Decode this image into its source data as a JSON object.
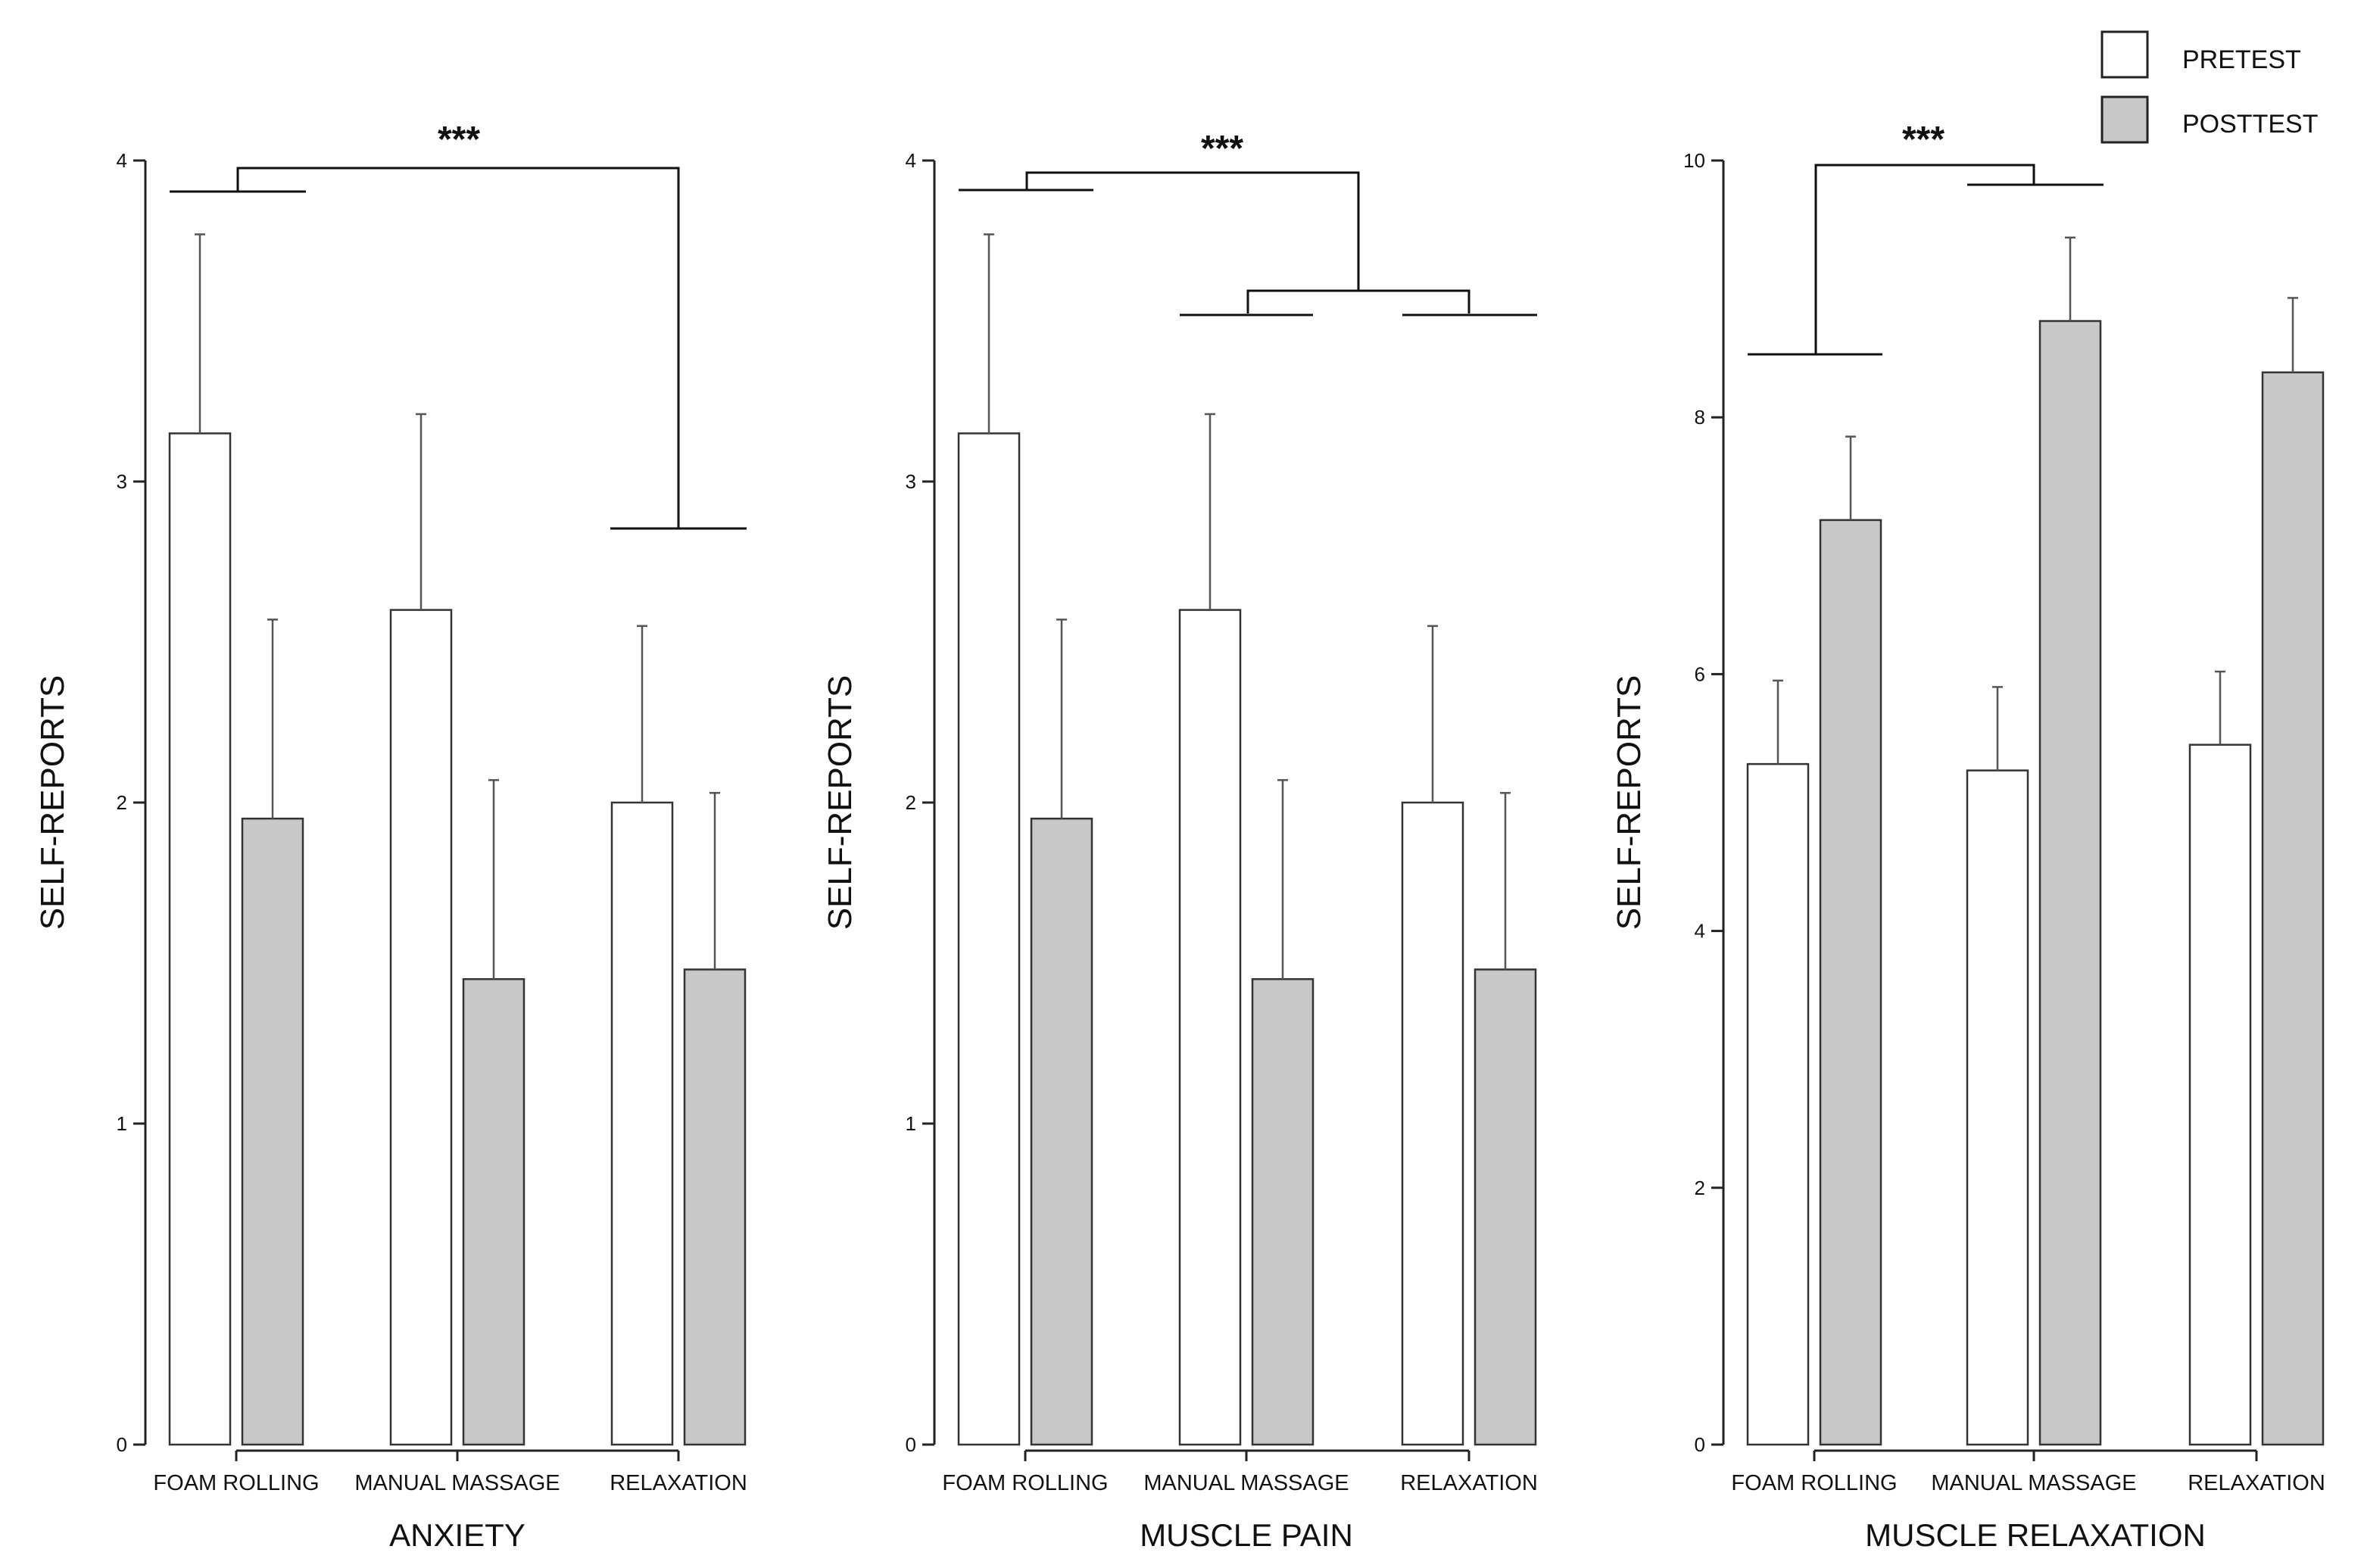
{
  "legend": {
    "items": [
      {
        "label": "PRETEST",
        "color": "#ffffff"
      },
      {
        "label": "POSTTEST",
        "color": "#c8c8c8"
      }
    ]
  },
  "colors": {
    "pretest": "#ffffff",
    "posttest": "#c8c8c8",
    "stroke": "#333333"
  },
  "chart_data": [
    {
      "type": "bar",
      "title": "ANXIETY",
      "xlabel": "ANXIETY",
      "ylabel": "SELF-REPORTS",
      "ylim": [
        0,
        4
      ],
      "yticks": [
        "0",
        "1",
        "2",
        "3",
        "4"
      ],
      "categories": [
        "FOAM ROLLING",
        "MANUAL MASSAGE",
        "RELAXATION"
      ],
      "series": [
        {
          "name": "PRETEST",
          "values": [
            3.15,
            2.6,
            2.0
          ],
          "errors": [
            0.62,
            0.61,
            0.55
          ]
        },
        {
          "name": "POSTTEST",
          "values": [
            1.95,
            1.45,
            1.48
          ],
          "errors": [
            0.62,
            0.62,
            0.55
          ]
        }
      ],
      "significance": {
        "label": "***",
        "between": [
          "FOAM ROLLING",
          "RELAXATION"
        ]
      }
    },
    {
      "type": "bar",
      "title": "MUSCLE PAIN",
      "xlabel": "MUSCLE PAIN",
      "ylabel": "SELF-REPORTS",
      "ylim": [
        0,
        4
      ],
      "yticks": [
        "0",
        "1",
        "2",
        "3",
        "4"
      ],
      "categories": [
        "FOAM ROLLING",
        "MANUAL MASSAGE",
        "RELAXATION"
      ],
      "series": [
        {
          "name": "PRETEST",
          "values": [
            3.15,
            2.6,
            2.0
          ],
          "errors": [
            0.62,
            0.61,
            0.55
          ]
        },
        {
          "name": "POSTTEST",
          "values": [
            1.95,
            1.45,
            1.48
          ],
          "errors": [
            0.62,
            0.62,
            0.55
          ]
        }
      ],
      "significance": {
        "label": "***",
        "between": [
          "FOAM ROLLING",
          "MANUAL MASSAGE + RELAXATION"
        ]
      }
    },
    {
      "type": "bar",
      "title": "MUSCLE RELAXATION",
      "xlabel": "MUSCLE RELAXATION",
      "ylabel": "SELF-REPORTS",
      "ylim": [
        0,
        10
      ],
      "yticks": [
        "0",
        "2",
        "4",
        "6",
        "8",
        "10"
      ],
      "categories": [
        "FOAM ROLLING",
        "MANUAL MASSAGE",
        "RELAXATION"
      ],
      "series": [
        {
          "name": "PRETEST",
          "values": [
            5.3,
            5.25,
            5.45
          ],
          "errors": [
            0.65,
            0.65,
            0.57
          ]
        },
        {
          "name": "POSTTEST",
          "values": [
            7.2,
            8.75,
            8.35
          ],
          "errors": [
            0.65,
            0.65,
            0.58
          ]
        }
      ],
      "significance": {
        "label": "***",
        "between": [
          "FOAM ROLLING",
          "MANUAL MASSAGE"
        ]
      }
    }
  ]
}
